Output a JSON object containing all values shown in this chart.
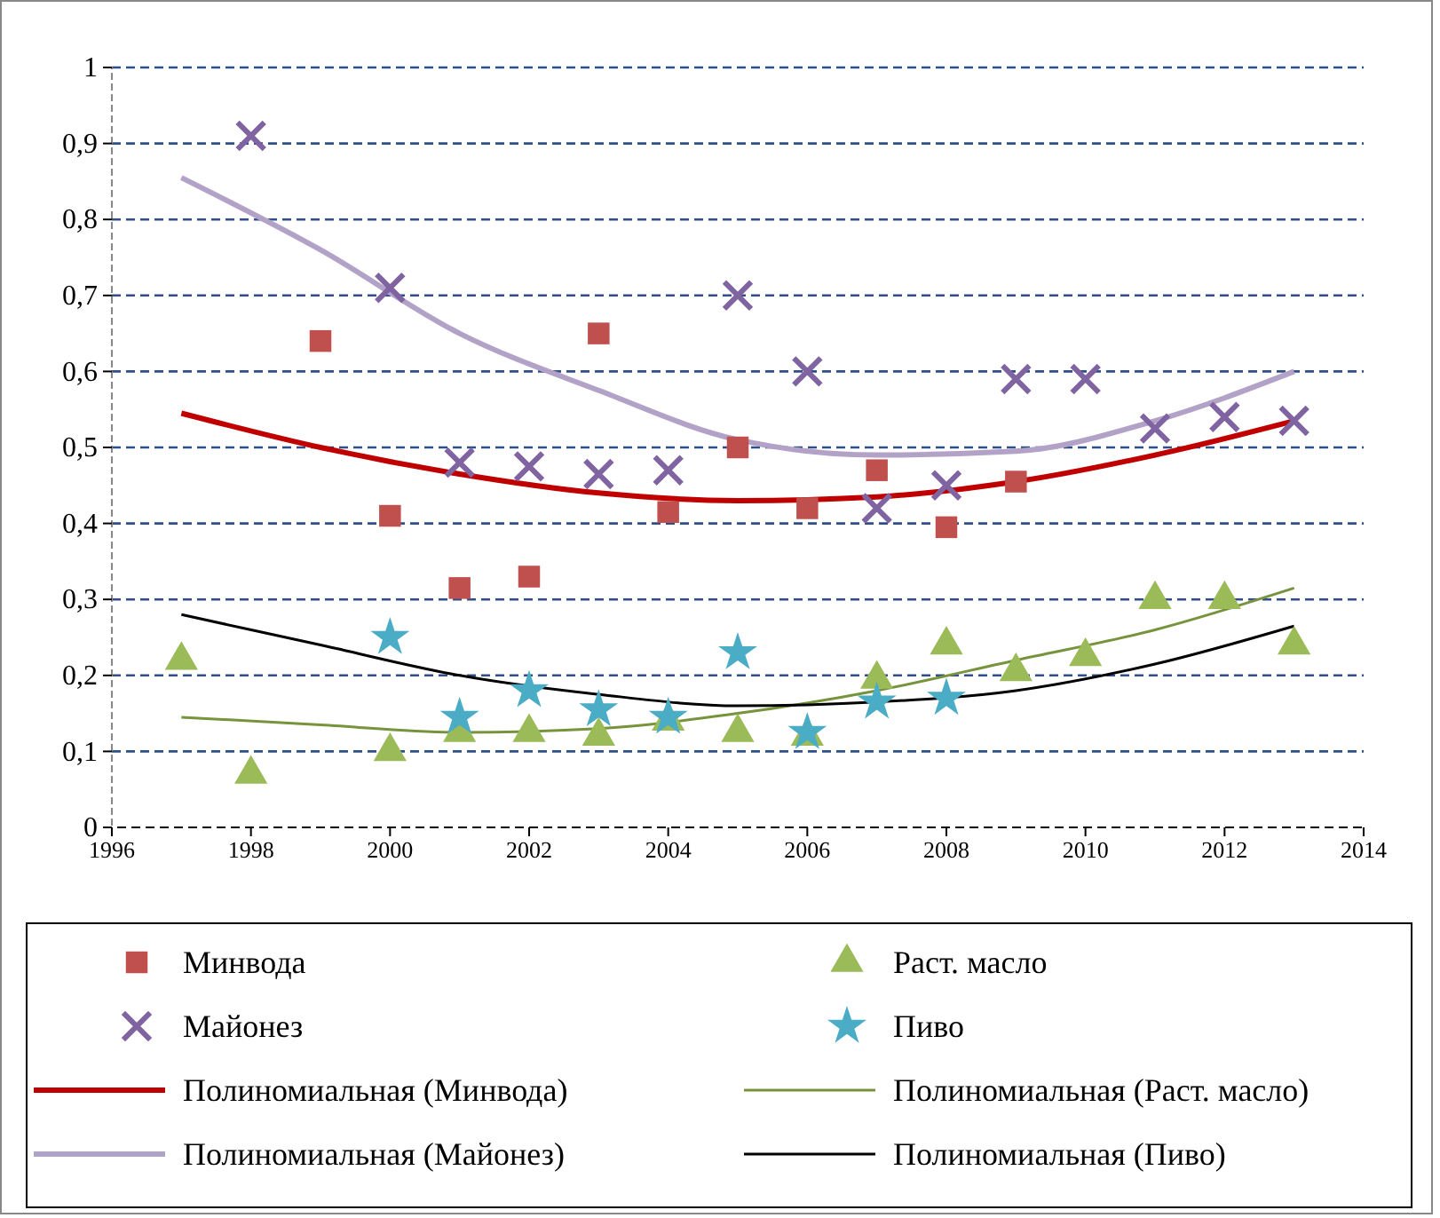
{
  "chart_data": {
    "type": "scatter",
    "grid": "y",
    "legend": "bottom",
    "xlim": [
      1996,
      2014
    ],
    "xticks": [
      1996,
      1998,
      2000,
      2002,
      2004,
      2006,
      2008,
      2010,
      2012,
      2014
    ],
    "ylim": [
      0,
      1
    ],
    "yticks": [
      0,
      {
        "value": 0.1,
        "label": "0,1"
      },
      {
        "value": 0.2,
        "label": "0,2"
      },
      {
        "value": 0.3,
        "label": "0,3"
      },
      {
        "value": 0.4,
        "label": "0,4"
      },
      {
        "value": 0.5,
        "label": "0,5"
      },
      {
        "value": 0.6,
        "label": "0,6"
      },
      {
        "value": 0.7,
        "label": "0,7"
      },
      {
        "value": 0.8,
        "label": "0,8"
      },
      {
        "value": 0.9,
        "label": "0,9"
      },
      1
    ],
    "series": [
      {
        "name": "Минвода",
        "marker": "square",
        "color": "#c0504d",
        "x": [
          1999,
          2000,
          2001,
          2002,
          2003,
          2004,
          2005,
          2006,
          2007,
          2008,
          2009
        ],
        "values": [
          0.64,
          0.41,
          0.315,
          0.33,
          0.65,
          0.415,
          0.5,
          0.42,
          0.47,
          0.395,
          0.455
        ]
      },
      {
        "name": "Раст. масло",
        "marker": "triangle",
        "color": "#9bbb59",
        "x": [
          1997,
          1998,
          2000,
          2001,
          2002,
          2003,
          2004,
          2005,
          2006,
          2007,
          2008,
          2009,
          2010,
          2011,
          2012,
          2013
        ],
        "values": [
          0.22,
          0.07,
          0.1,
          0.125,
          0.125,
          0.12,
          0.14,
          0.125,
          0.12,
          0.195,
          0.24,
          0.205,
          0.225,
          0.3,
          0.3,
          0.24
        ]
      },
      {
        "name": "Майонез",
        "marker": "cross",
        "color": "#8064a2",
        "x": [
          1998,
          2000,
          2001,
          2002,
          2003,
          2004,
          2005,
          2006,
          2007,
          2008,
          2009,
          2010,
          2011,
          2012,
          2013
        ],
        "values": [
          0.91,
          0.71,
          0.48,
          0.475,
          0.465,
          0.47,
          0.7,
          0.6,
          0.42,
          0.45,
          0.59,
          0.59,
          0.525,
          0.54,
          0.535
        ]
      },
      {
        "name": "Пиво",
        "marker": "star",
        "color": "#4bacc6",
        "x": [
          2000,
          2001,
          2002,
          2003,
          2004,
          2005,
          2006,
          2007,
          2008
        ],
        "values": [
          0.25,
          0.145,
          0.18,
          0.155,
          0.145,
          0.23,
          0.125,
          0.165,
          0.17
        ]
      },
      {
        "name": "Полиномиальная (Минвода)",
        "type": "line",
        "color": "#c00000",
        "x": [
          1997,
          1999,
          2001,
          2003,
          2005,
          2007,
          2009,
          2011,
          2013
        ],
        "values": [
          0.545,
          0.5,
          0.465,
          0.44,
          0.43,
          0.435,
          0.455,
          0.49,
          0.535
        ]
      },
      {
        "name": "Полиномиальная (Раст. масло)",
        "type": "line",
        "color": "#77933c",
        "x": [
          1997,
          1999,
          2001,
          2003,
          2005,
          2007,
          2009,
          2011,
          2013
        ],
        "values": [
          0.145,
          0.135,
          0.125,
          0.13,
          0.15,
          0.18,
          0.22,
          0.26,
          0.315
        ]
      },
      {
        "name": "Полиномиальная (Майонез)",
        "type": "line",
        "color": "#b3a2c7",
        "x": [
          1997,
          1999,
          2001,
          2003,
          2005,
          2007,
          2009,
          2011,
          2013
        ],
        "values": [
          0.855,
          0.76,
          0.65,
          0.575,
          0.51,
          0.49,
          0.495,
          0.535,
          0.6
        ]
      },
      {
        "name": "Полиномиальная (Пиво)",
        "type": "line",
        "color": "#000000",
        "x": [
          1997,
          1999,
          2001,
          2003,
          2005,
          2007,
          2009,
          2011,
          2013
        ],
        "values": [
          0.28,
          0.24,
          0.2,
          0.175,
          0.16,
          0.165,
          0.18,
          0.215,
          0.265
        ]
      }
    ]
  }
}
